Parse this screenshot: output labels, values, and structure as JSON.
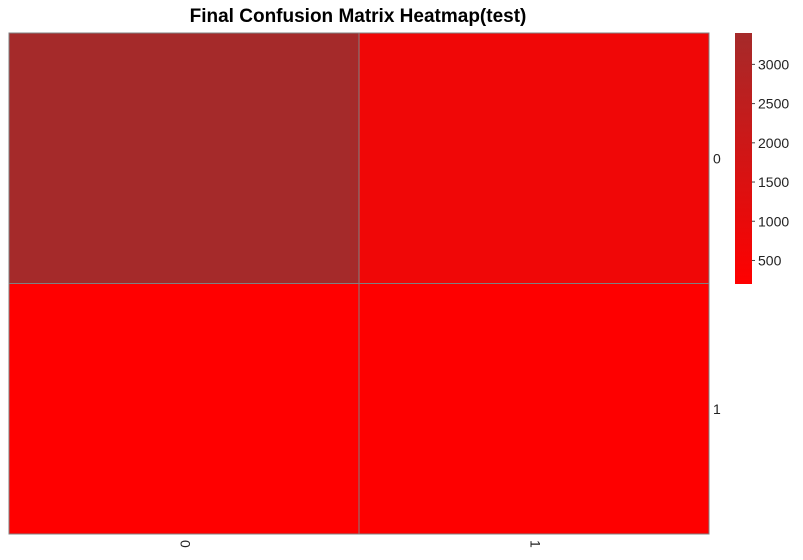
{
  "chart_data": {
    "type": "heatmap",
    "title": "Final Confusion Matrix Heatmap(test)",
    "rows": [
      "0",
      "1"
    ],
    "columns": [
      "0",
      "1"
    ],
    "values": [
      [
        3400,
        750
      ],
      [
        200,
        220
      ]
    ],
    "colorscale": {
      "low": "#ff0000",
      "high": "#a52a2a",
      "min": 200,
      "max": 3400
    },
    "colorbar_ticks": [
      "500",
      "1000",
      "1500",
      "2000",
      "2500",
      "3000"
    ],
    "colorbar_tick_values": [
      500,
      1000,
      1500,
      2000,
      2500,
      3000
    ],
    "cell_border_color": "#808080"
  }
}
